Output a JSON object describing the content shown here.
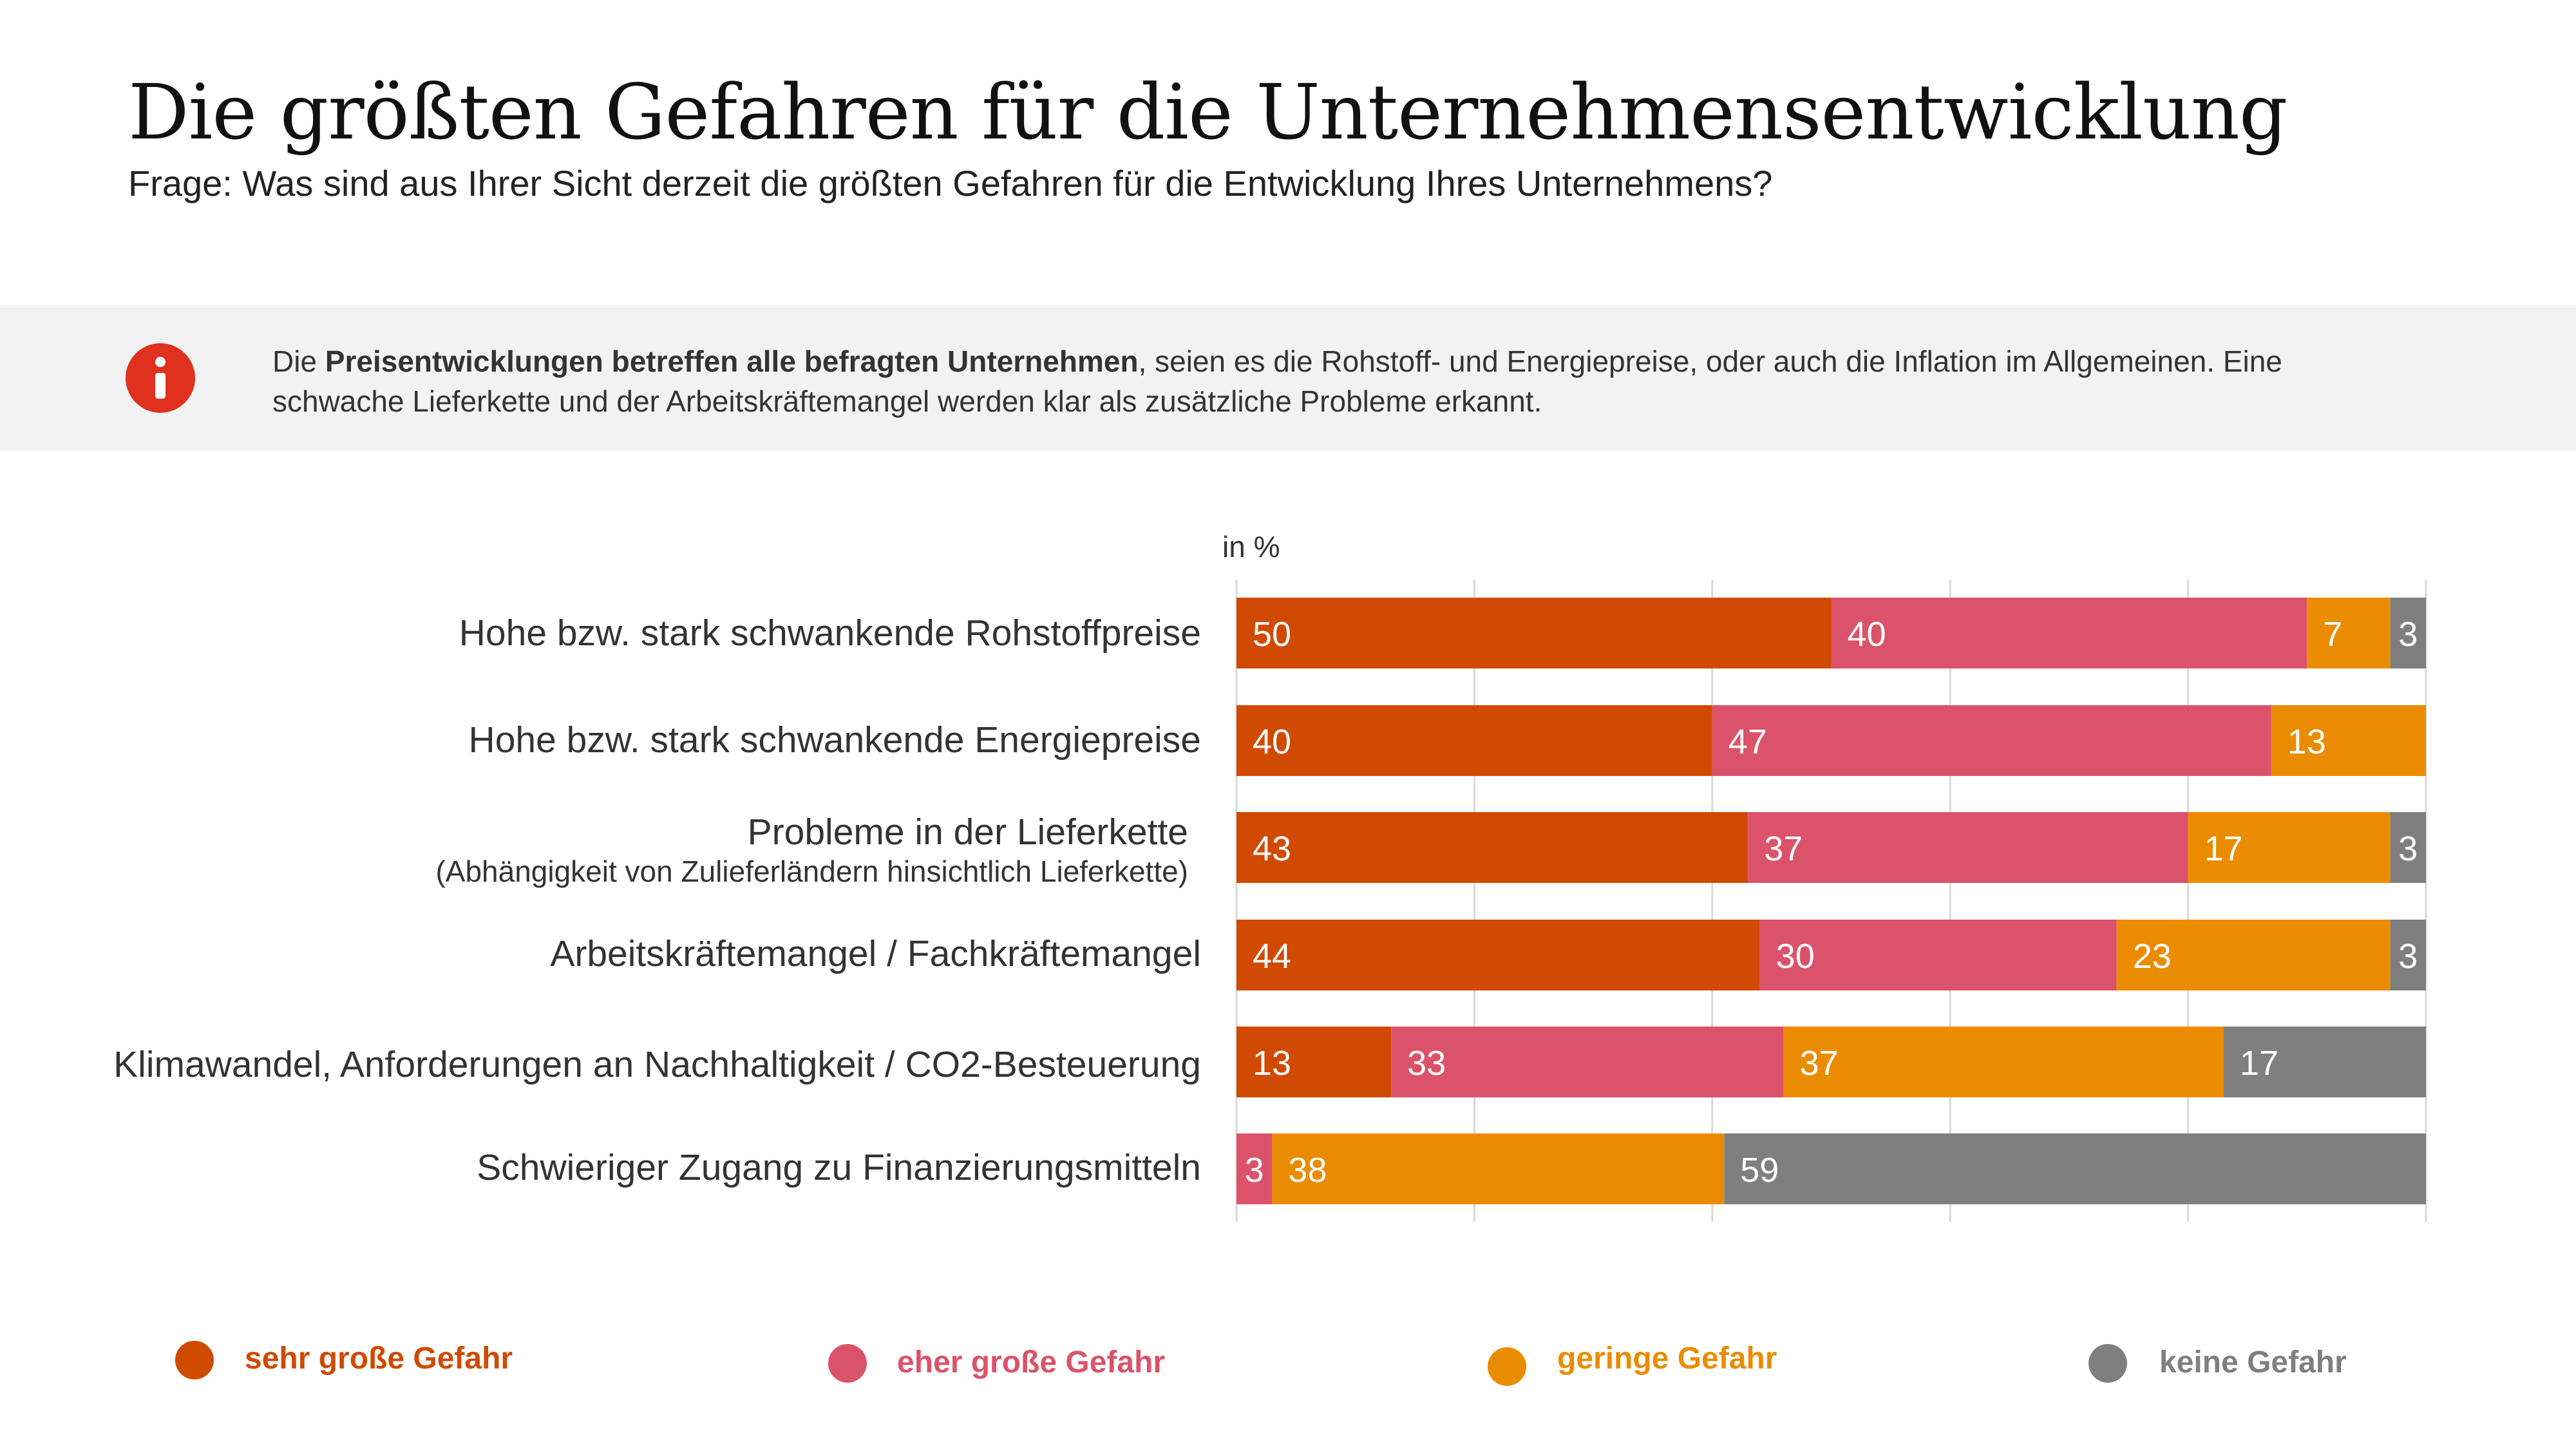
{
  "title": "Die größten Gefahren für die Unternehmensentwicklung",
  "subtitle": "Frage: Was sind aus Ihrer Sicht derzeit die größten Gefahren für die Entwicklung Ihres Unternehmens?",
  "info": {
    "icon": "info-icon",
    "prefix": "Die ",
    "bold": "Preisentwicklungen betreffen alle befragten Unternehmen",
    "rest": ", seien es die Rohstoff- und Energiepreise, oder auch die Inflation im Allgemeinen. Eine schwache Lieferkette und der Arbeitskräftemangel werden klar als zusätzliche Probleme erkannt."
  },
  "colors": {
    "sehr": "#d04a02",
    "eher": "#db536a",
    "geringe": "#eb8c00",
    "keine": "#7f7f7f",
    "grid": "#d9d9d9"
  },
  "chart_data": {
    "type": "bar",
    "orientation": "horizontal",
    "stacked": true,
    "unit_label": "in %",
    "categories": [
      "Hohe bzw. stark schwankende Rohstoffpreise",
      "Hohe bzw. stark schwankende Energiepreise",
      "Probleme in der Lieferkette",
      "Arbeitskräftemangel / Fachkräftemangel",
      "Klimawandel, Anforderungen an Nachhaltigkeit / CO2-Besteuerung",
      "Schwieriger Zugang zu Finanzierungsmitteln"
    ],
    "category_notes": [
      "",
      "",
      "(Abhängigkeit von Zulieferländern hinsichtlich Lieferkette)",
      "",
      "",
      ""
    ],
    "series": [
      {
        "name": "sehr große Gefahr",
        "color_key": "sehr",
        "values": [
          50,
          40,
          43,
          44,
          13,
          0
        ]
      },
      {
        "name": "eher große Gefahr",
        "color_key": "eher",
        "values": [
          40,
          47,
          37,
          30,
          33,
          3
        ]
      },
      {
        "name": "geringe Gefahr",
        "color_key": "geringe",
        "values": [
          7,
          13,
          17,
          23,
          37,
          38
        ]
      },
      {
        "name": "keine Gefahr",
        "color_key": "keine",
        "values": [
          3,
          0,
          3,
          3,
          17,
          59
        ]
      }
    ],
    "xlim": [
      0,
      100
    ],
    "grid": true,
    "legend_position": "bottom"
  }
}
